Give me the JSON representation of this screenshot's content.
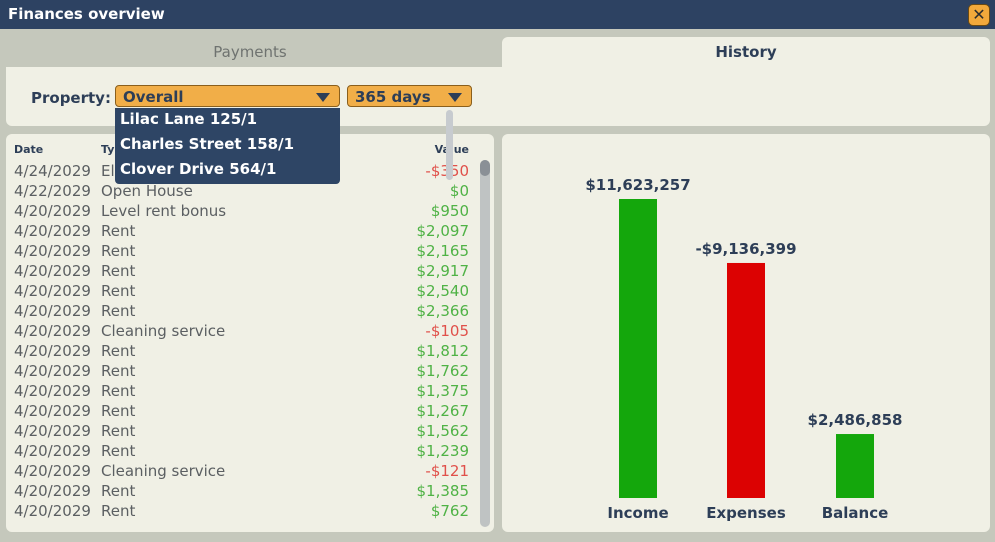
{
  "window": {
    "title": "Finances overview"
  },
  "tabs": [
    "Payments",
    "History"
  ],
  "filters": {
    "label": "Property:",
    "property": "Overall",
    "period": "365 days",
    "options": [
      "Lilac Lane 125/1",
      "Charles Street 158/1",
      "Clover Drive 564/1"
    ]
  },
  "table": {
    "headers": [
      "Date",
      "Ty",
      "Value"
    ],
    "rows": [
      [
        "4/24/2029",
        "El",
        "-$350"
      ],
      [
        "4/22/2029",
        "Open House",
        "$0"
      ],
      [
        "4/20/2029",
        "Level rent bonus",
        "$950"
      ],
      [
        "4/20/2029",
        "Rent",
        "$2,097"
      ],
      [
        "4/20/2029",
        "Rent",
        "$2,165"
      ],
      [
        "4/20/2029",
        "Rent",
        "$2,917"
      ],
      [
        "4/20/2029",
        "Rent",
        "$2,540"
      ],
      [
        "4/20/2029",
        "Rent",
        "$2,366"
      ],
      [
        "4/20/2029",
        "Cleaning service",
        "-$105"
      ],
      [
        "4/20/2029",
        "Rent",
        "$1,812"
      ],
      [
        "4/20/2029",
        "Rent",
        "$1,762"
      ],
      [
        "4/20/2029",
        "Rent",
        "$1,375"
      ],
      [
        "4/20/2029",
        "Rent",
        "$1,267"
      ],
      [
        "4/20/2029",
        "Rent",
        "$1,562"
      ],
      [
        "4/20/2029",
        "Rent",
        "$1,239"
      ],
      [
        "4/20/2029",
        "Cleaning service",
        "-$121"
      ],
      [
        "4/20/2029",
        "Rent",
        "$1,385"
      ],
      [
        "4/20/2029",
        "Rent",
        "$762"
      ]
    ]
  },
  "chart_data": {
    "type": "bar",
    "categories": [
      "Income",
      "Expenses",
      "Balance"
    ],
    "values": [
      11623257,
      -9136399,
      2486858
    ],
    "value_labels": [
      "$11,623,257",
      "-$9,136,399",
      "$2,486,858"
    ],
    "colors": [
      "#14a70c",
      "#dc0202",
      "#14a70c"
    ]
  }
}
